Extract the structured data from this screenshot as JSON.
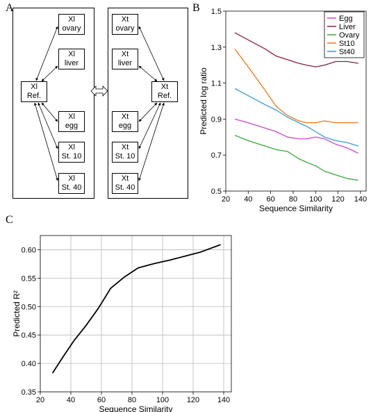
{
  "panels": {
    "a": "A",
    "b": "B",
    "c": "C"
  },
  "diagram": {
    "left": {
      "ovary": [
        "Xl",
        "ovary"
      ],
      "liver": [
        "Xl",
        "liver"
      ],
      "ref": [
        "Xl",
        "Ref."
      ],
      "egg": [
        "Xl",
        "egg"
      ],
      "st10": [
        "Xl",
        "St. 10"
      ],
      "st40": [
        "Xl",
        "St. 40"
      ]
    },
    "right": {
      "ovary": [
        "Xt",
        "ovary"
      ],
      "liver": [
        "Xt",
        "liver"
      ],
      "ref": [
        "Xt",
        "Ref."
      ],
      "egg": [
        "Xt",
        "egg"
      ],
      "st10": [
        "Xt",
        "St. 10"
      ],
      "st40": [
        "Xt",
        "St. 40"
      ]
    }
  },
  "chart_data": [
    {
      "id": "B",
      "type": "line",
      "xlabel": "Sequence Similarity",
      "ylabel": "Predicted log ratio",
      "xlim": [
        20,
        145
      ],
      "ylim": [
        0.5,
        1.5
      ],
      "xticks": [
        "20",
        "40",
        "60",
        "80",
        "100",
        "120",
        "140"
      ],
      "yticks": [
        "0.5",
        "0.7",
        "0.9",
        "1.1",
        "1.3",
        "1.5"
      ],
      "grid": false,
      "legend_position": "top-right",
      "series": [
        {
          "name": "Egg",
          "color": "#cc44cc",
          "x": [
            28,
            40,
            55,
            65,
            75,
            85,
            92,
            100,
            108,
            118,
            128,
            138
          ],
          "y": [
            0.9,
            0.88,
            0.85,
            0.83,
            0.8,
            0.79,
            0.79,
            0.8,
            0.79,
            0.76,
            0.74,
            0.71
          ]
        },
        {
          "name": "Liver",
          "color": "#8b1a4a",
          "x": [
            28,
            40,
            55,
            65,
            75,
            85,
            92,
            100,
            108,
            118,
            128,
            138
          ],
          "y": [
            1.38,
            1.34,
            1.29,
            1.25,
            1.23,
            1.21,
            1.2,
            1.19,
            1.2,
            1.22,
            1.22,
            1.21
          ]
        },
        {
          "name": "Ovary",
          "color": "#33aa33",
          "x": [
            28,
            40,
            55,
            65,
            75,
            85,
            92,
            100,
            108,
            118,
            128,
            138
          ],
          "y": [
            0.81,
            0.78,
            0.75,
            0.73,
            0.72,
            0.68,
            0.66,
            0.64,
            0.61,
            0.59,
            0.57,
            0.56
          ]
        },
        {
          "name": "St10",
          "color": "#ee7711",
          "x": [
            28,
            40,
            55,
            65,
            75,
            85,
            92,
            100,
            108,
            118,
            128,
            138
          ],
          "y": [
            1.29,
            1.19,
            1.06,
            0.97,
            0.92,
            0.89,
            0.88,
            0.88,
            0.89,
            0.88,
            0.88,
            0.88
          ]
        },
        {
          "name": "St40",
          "color": "#3399dd",
          "x": [
            28,
            40,
            55,
            65,
            75,
            85,
            92,
            100,
            108,
            118,
            128,
            138
          ],
          "y": [
            1.07,
            1.03,
            0.98,
            0.95,
            0.91,
            0.88,
            0.86,
            0.83,
            0.8,
            0.78,
            0.77,
            0.75
          ]
        }
      ]
    },
    {
      "id": "C",
      "type": "line",
      "xlabel": "Sequence Similarity",
      "ylabel": "Predicted R²",
      "xlim": [
        20,
        145
      ],
      "ylim": [
        0.35,
        0.625
      ],
      "xticks": [
        "20",
        "40",
        "60",
        "80",
        "100",
        "120",
        "140"
      ],
      "yticks": [
        "0.35",
        "0.40",
        "0.45",
        "0.50",
        "0.55",
        "0.60"
      ],
      "grid": true,
      "series": [
        {
          "color": "#000000",
          "x": [
            28,
            35,
            42,
            50,
            58,
            66,
            75,
            84,
            95,
            105,
            115,
            125,
            138
          ],
          "y": [
            0.383,
            0.412,
            0.44,
            0.467,
            0.497,
            0.532,
            0.552,
            0.568,
            0.576,
            0.582,
            0.589,
            0.596,
            0.609
          ]
        }
      ]
    }
  ]
}
